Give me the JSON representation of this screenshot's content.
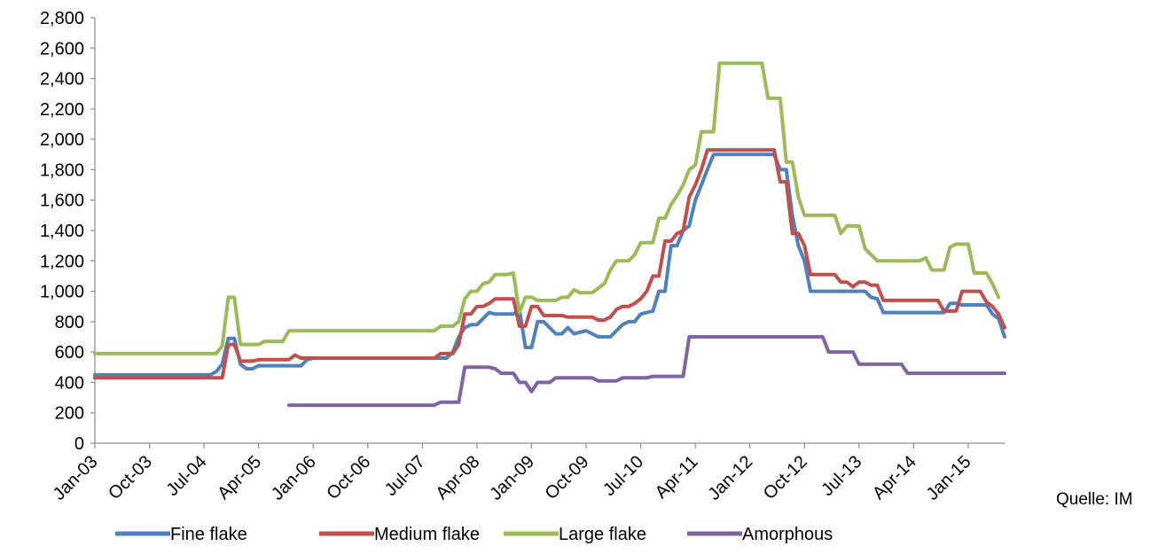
{
  "source_note": "Quelle: IM",
  "chart_data": {
    "type": "line",
    "ylim": [
      0,
      2800
    ],
    "yticks": [
      0,
      200,
      400,
      600,
      800,
      1000,
      1200,
      1400,
      1600,
      1800,
      2000,
      2200,
      2400,
      2600,
      2800
    ],
    "ytick_labels": [
      "0",
      "200",
      "400",
      "600",
      "800",
      "1,000",
      "1,200",
      "1,400",
      "1,600",
      "1,800",
      "2,000",
      "2,200",
      "2,400",
      "2,600",
      "2,800"
    ],
    "x_categories": [
      "Jan-03",
      "Oct-03",
      "Jul-04",
      "Apr-05",
      "Jan-06",
      "Oct-06",
      "Jul-07",
      "Apr-08",
      "Jan-09",
      "Oct-09",
      "Jul-10",
      "Apr-11",
      "Jan-12",
      "Oct-12",
      "Jul-13",
      "Apr-14",
      "Jan-15"
    ],
    "x_range_months": [
      0,
      150
    ],
    "x_unit_note": "months since Jan-03; labeled every 9 months",
    "grid": false,
    "legend_position": "bottom",
    "series": [
      {
        "name": "Fine flake",
        "color": "#4F81BD",
        "points": [
          [
            0,
            450
          ],
          [
            19,
            450
          ],
          [
            20,
            470
          ],
          [
            21,
            520
          ],
          [
            22,
            690
          ],
          [
            23,
            690
          ],
          [
            24,
            520
          ],
          [
            25,
            490
          ],
          [
            26,
            490
          ],
          [
            27,
            510
          ],
          [
            34,
            510
          ],
          [
            35,
            550
          ],
          [
            36,
            560
          ],
          [
            58,
            560
          ],
          [
            59,
            600
          ],
          [
            60,
            700
          ],
          [
            61,
            760
          ],
          [
            62,
            780
          ],
          [
            63,
            780
          ],
          [
            64,
            820
          ],
          [
            65,
            860
          ],
          [
            66,
            850
          ],
          [
            69,
            850
          ],
          [
            70,
            880
          ],
          [
            71,
            630
          ],
          [
            72,
            630
          ],
          [
            73,
            800
          ],
          [
            74,
            800
          ],
          [
            75,
            760
          ],
          [
            76,
            720
          ],
          [
            77,
            720
          ],
          [
            78,
            760
          ],
          [
            79,
            720
          ],
          [
            81,
            740
          ],
          [
            83,
            700
          ],
          [
            85,
            700
          ],
          [
            86,
            740
          ],
          [
            87,
            780
          ],
          [
            88,
            800
          ],
          [
            89,
            800
          ],
          [
            90,
            850
          ],
          [
            91,
            860
          ],
          [
            92,
            870
          ],
          [
            93,
            1000
          ],
          [
            94,
            1000
          ],
          [
            95,
            1300
          ],
          [
            96,
            1300
          ],
          [
            97,
            1400
          ],
          [
            98,
            1430
          ],
          [
            99,
            1600
          ],
          [
            100,
            1700
          ],
          [
            101,
            1800
          ],
          [
            102,
            1900
          ],
          [
            112,
            1900
          ],
          [
            113,
            1800
          ],
          [
            114,
            1800
          ],
          [
            115,
            1500
          ],
          [
            116,
            1300
          ],
          [
            117,
            1200
          ],
          [
            118,
            1000
          ],
          [
            124,
            1000
          ],
          [
            127,
            1000
          ],
          [
            128,
            960
          ],
          [
            129,
            950
          ],
          [
            130,
            860
          ],
          [
            140,
            860
          ],
          [
            141,
            920
          ],
          [
            142,
            920
          ],
          [
            143,
            910
          ],
          [
            147,
            910
          ],
          [
            148,
            850
          ],
          [
            149,
            820
          ],
          [
            150,
            700
          ]
        ]
      },
      {
        "name": "Medium flake",
        "color": "#C0504D",
        "points": [
          [
            0,
            430
          ],
          [
            21,
            430
          ],
          [
            22,
            650
          ],
          [
            23,
            650
          ],
          [
            24,
            540
          ],
          [
            26,
            540
          ],
          [
            27,
            550
          ],
          [
            32,
            550
          ],
          [
            33,
            580
          ],
          [
            34,
            560
          ],
          [
            56,
            560
          ],
          [
            57,
            590
          ],
          [
            59,
            590
          ],
          [
            60,
            650
          ],
          [
            61,
            850
          ],
          [
            62,
            850
          ],
          [
            63,
            900
          ],
          [
            64,
            900
          ],
          [
            65,
            920
          ],
          [
            66,
            950
          ],
          [
            69,
            950
          ],
          [
            70,
            770
          ],
          [
            71,
            770
          ],
          [
            72,
            900
          ],
          [
            73,
            900
          ],
          [
            74,
            840
          ],
          [
            77,
            840
          ],
          [
            78,
            830
          ],
          [
            79,
            830
          ],
          [
            82,
            830
          ],
          [
            83,
            810
          ],
          [
            84,
            810
          ],
          [
            85,
            830
          ],
          [
            86,
            880
          ],
          [
            87,
            900
          ],
          [
            88,
            900
          ],
          [
            89,
            920
          ],
          [
            90,
            950
          ],
          [
            91,
            1000
          ],
          [
            92,
            1100
          ],
          [
            93,
            1100
          ],
          [
            94,
            1330
          ],
          [
            95,
            1330
          ],
          [
            96,
            1380
          ],
          [
            97,
            1400
          ],
          [
            98,
            1620
          ],
          [
            99,
            1700
          ],
          [
            100,
            1800
          ],
          [
            101,
            1930
          ],
          [
            112,
            1930
          ],
          [
            113,
            1720
          ],
          [
            114,
            1720
          ],
          [
            115,
            1380
          ],
          [
            116,
            1380
          ],
          [
            117,
            1300
          ],
          [
            118,
            1110
          ],
          [
            122,
            1110
          ],
          [
            123,
            1060
          ],
          [
            124,
            1060
          ],
          [
            125,
            1030
          ],
          [
            126,
            1060
          ],
          [
            127,
            1060
          ],
          [
            128,
            1040
          ],
          [
            129,
            1040
          ],
          [
            130,
            940
          ],
          [
            139,
            940
          ],
          [
            140,
            870
          ],
          [
            141,
            870
          ],
          [
            142,
            870
          ],
          [
            143,
            1000
          ],
          [
            146,
            1000
          ],
          [
            147,
            930
          ],
          [
            148,
            900
          ],
          [
            149,
            850
          ],
          [
            150,
            760
          ]
        ]
      },
      {
        "name": "Large flake",
        "color": "#9BBB59",
        "points": [
          [
            0,
            590
          ],
          [
            20,
            590
          ],
          [
            21,
            640
          ],
          [
            22,
            960
          ],
          [
            23,
            960
          ],
          [
            24,
            650
          ],
          [
            27,
            650
          ],
          [
            28,
            670
          ],
          [
            31,
            670
          ],
          [
            32,
            740
          ],
          [
            56,
            740
          ],
          [
            57,
            770
          ],
          [
            59,
            770
          ],
          [
            60,
            800
          ],
          [
            61,
            950
          ],
          [
            62,
            1000
          ],
          [
            63,
            1000
          ],
          [
            64,
            1050
          ],
          [
            65,
            1060
          ],
          [
            66,
            1110
          ],
          [
            68,
            1110
          ],
          [
            69,
            1120
          ],
          [
            70,
            860
          ],
          [
            71,
            960
          ],
          [
            72,
            960
          ],
          [
            73,
            940
          ],
          [
            76,
            940
          ],
          [
            77,
            960
          ],
          [
            78,
            960
          ],
          [
            79,
            1010
          ],
          [
            80,
            990
          ],
          [
            82,
            990
          ],
          [
            83,
            1020
          ],
          [
            84,
            1050
          ],
          [
            85,
            1140
          ],
          [
            86,
            1200
          ],
          [
            88,
            1200
          ],
          [
            89,
            1240
          ],
          [
            90,
            1320
          ],
          [
            92,
            1320
          ],
          [
            93,
            1480
          ],
          [
            94,
            1480
          ],
          [
            95,
            1570
          ],
          [
            96,
            1630
          ],
          [
            97,
            1700
          ],
          [
            98,
            1800
          ],
          [
            99,
            1830
          ],
          [
            100,
            2050
          ],
          [
            102,
            2050
          ],
          [
            103,
            2500
          ],
          [
            110,
            2500
          ],
          [
            111,
            2270
          ],
          [
            113,
            2270
          ],
          [
            114,
            1850
          ],
          [
            115,
            1850
          ],
          [
            116,
            1620
          ],
          [
            117,
            1500
          ],
          [
            122,
            1500
          ],
          [
            123,
            1380
          ],
          [
            124,
            1430
          ],
          [
            126,
            1430
          ],
          [
            127,
            1280
          ],
          [
            128,
            1240
          ],
          [
            129,
            1200
          ],
          [
            136,
            1200
          ],
          [
            137,
            1220
          ],
          [
            138,
            1140
          ],
          [
            139,
            1140
          ],
          [
            140,
            1140
          ],
          [
            141,
            1290
          ],
          [
            142,
            1310
          ],
          [
            144,
            1310
          ],
          [
            145,
            1120
          ],
          [
            146,
            1120
          ],
          [
            147,
            1120
          ],
          [
            148,
            1050
          ],
          [
            149,
            960
          ]
        ]
      },
      {
        "name": "Amorphous",
        "color": "#8064A2",
        "points": [
          [
            32,
            250
          ],
          [
            56,
            250
          ],
          [
            57,
            270
          ],
          [
            60,
            270
          ],
          [
            61,
            500
          ],
          [
            65,
            500
          ],
          [
            66,
            490
          ],
          [
            67,
            460
          ],
          [
            68,
            460
          ],
          [
            69,
            460
          ],
          [
            70,
            400
          ],
          [
            71,
            400
          ],
          [
            72,
            340
          ],
          [
            73,
            400
          ],
          [
            74,
            400
          ],
          [
            75,
            400
          ],
          [
            76,
            430
          ],
          [
            82,
            430
          ],
          [
            83,
            410
          ],
          [
            86,
            410
          ],
          [
            87,
            430
          ],
          [
            90,
            430
          ],
          [
            91,
            430
          ],
          [
            92,
            440
          ],
          [
            97,
            440
          ],
          [
            98,
            700
          ],
          [
            120,
            700
          ],
          [
            121,
            600
          ],
          [
            125,
            600
          ],
          [
            126,
            520
          ],
          [
            133,
            520
          ],
          [
            134,
            460
          ],
          [
            146,
            460
          ],
          [
            150,
            460
          ]
        ]
      }
    ]
  }
}
